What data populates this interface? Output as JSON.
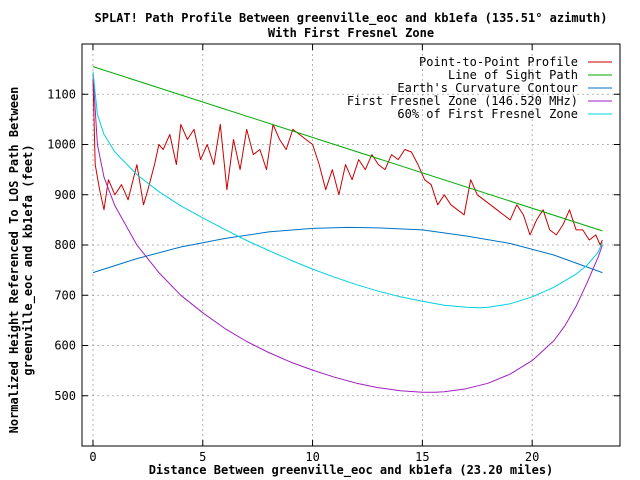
{
  "chart_data": {
    "type": "line",
    "title_line1": "SPLAT! Path Profile Between greenville_eoc and kb1efa (135.51° azimuth)",
    "title_line2": "With First Fresnel Zone",
    "xlabel": "Distance Between greenville_eoc and kb1efa (23.20 miles)",
    "ylabel_line1": "Normalized Height Referenced To LOS Path Between",
    "ylabel_line2": "greenville_eoc and kb1efa (feet)",
    "xlim": [
      -0.5,
      24
    ],
    "ylim": [
      400,
      1200
    ],
    "xticks": [
      0,
      5,
      10,
      15,
      20
    ],
    "yticks": [
      500,
      600,
      700,
      800,
      900,
      1000,
      1100
    ],
    "grid": true,
    "legend_position": "top-right",
    "colors": {
      "profile": "#cc0000",
      "los": "#00aa00",
      "curvature": "#0072c6",
      "fresnel": "#a020c0",
      "fresnel60": "#00d0e0"
    },
    "series": [
      {
        "key": "profile",
        "name": "Point-to-Point Profile",
        "x": [
          0,
          0.1,
          0.3,
          0.5,
          0.7,
          1.0,
          1.3,
          1.6,
          2.0,
          2.3,
          2.5,
          2.8,
          3.0,
          3.2,
          3.5,
          3.8,
          4.0,
          4.3,
          4.6,
          4.9,
          5.2,
          5.5,
          5.8,
          6.1,
          6.4,
          6.7,
          7.0,
          7.3,
          7.6,
          7.9,
          8.2,
          8.5,
          8.8,
          9.1,
          9.4,
          9.7,
          10.0,
          10.3,
          10.6,
          10.9,
          11.2,
          11.5,
          11.8,
          12.1,
          12.4,
          12.7,
          13.0,
          13.3,
          13.6,
          13.9,
          14.2,
          14.5,
          14.8,
          15.1,
          15.4,
          15.7,
          16.0,
          16.3,
          16.6,
          16.9,
          17.2,
          17.5,
          17.8,
          18.1,
          18.4,
          18.7,
          19.0,
          19.3,
          19.6,
          19.9,
          20.2,
          20.5,
          20.8,
          21.1,
          21.4,
          21.7,
          22.0,
          22.3,
          22.6,
          22.9,
          23.1,
          23.2
        ],
        "values": [
          1130,
          960,
          910,
          870,
          930,
          900,
          920,
          890,
          960,
          880,
          910,
          960,
          1000,
          990,
          1020,
          960,
          1040,
          1010,
          1030,
          970,
          1000,
          960,
          1040,
          910,
          1010,
          950,
          1030,
          980,
          990,
          950,
          1040,
          1010,
          990,
          1030,
          1020,
          1010,
          1000,
          960,
          910,
          950,
          900,
          960,
          930,
          970,
          950,
          980,
          960,
          950,
          980,
          970,
          990,
          985,
          960,
          930,
          920,
          880,
          900,
          880,
          870,
          860,
          930,
          900,
          890,
          880,
          870,
          860,
          850,
          880,
          860,
          820,
          850,
          870,
          830,
          820,
          840,
          870,
          830,
          830,
          810,
          820,
          800,
          810
        ]
      },
      {
        "key": "los",
        "name": "Line of Sight Path",
        "x": [
          0,
          23.2
        ],
        "values": [
          1155,
          828
        ]
      },
      {
        "key": "curvature",
        "name": "Earth's Curvature Contour",
        "x": [
          0,
          2,
          4,
          6,
          8,
          10,
          11.6,
          13,
          15,
          17,
          19,
          21,
          23.2
        ],
        "values": [
          745,
          773,
          796,
          813,
          826,
          833,
          835,
          834,
          830,
          818,
          803,
          780,
          745
        ]
      },
      {
        "key": "fresnel",
        "name": "First Fresnel Zone (146.520 MHz)",
        "x": [
          0,
          0.2,
          0.5,
          1,
          2,
          3,
          4,
          5,
          6,
          7,
          8,
          9,
          10,
          11,
          12,
          13,
          14,
          15,
          15.6,
          16,
          17,
          18,
          19,
          20,
          21,
          21.5,
          22,
          22.5,
          22.8,
          23.0,
          23.2
        ],
        "values": [
          1140,
          1000,
          935,
          878,
          800,
          745,
          700,
          665,
          634,
          608,
          586,
          567,
          551,
          537,
          525,
          516,
          510,
          507,
          507,
          508,
          514,
          525,
          543,
          570,
          610,
          640,
          678,
          725,
          755,
          775,
          800
        ]
      },
      {
        "key": "fresnel60",
        "name": "60% of First Fresnel Zone",
        "x": [
          0,
          0.2,
          0.5,
          1,
          2,
          3,
          4,
          5,
          6,
          7,
          8,
          9,
          10,
          11,
          12,
          13,
          14,
          15,
          16,
          17,
          17.6,
          18,
          19,
          20,
          21,
          22,
          22.5,
          23.0,
          23.2
        ],
        "values": [
          1145,
          1060,
          1020,
          985,
          940,
          906,
          878,
          854,
          831,
          809,
          789,
          770,
          752,
          736,
          721,
          708,
          697,
          688,
          680,
          676,
          675,
          676,
          683,
          697,
          716,
          742,
          760,
          785,
          805
        ]
      }
    ]
  }
}
